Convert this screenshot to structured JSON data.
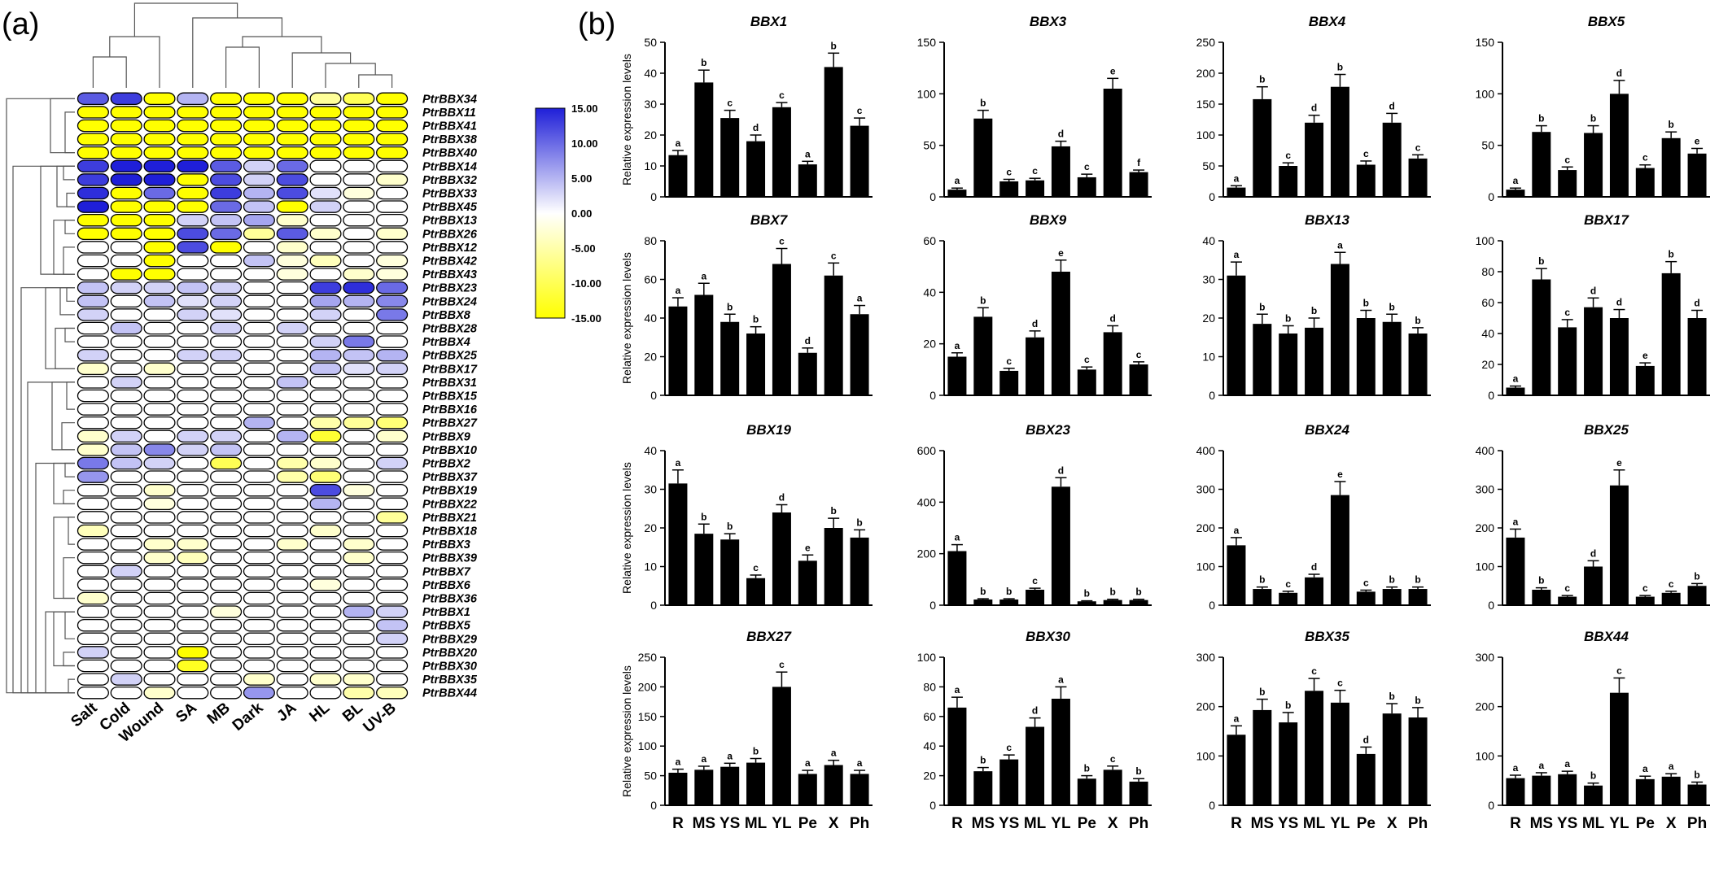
{
  "figure": {
    "panel_a_label": "(a)",
    "panel_b_label": "(b)"
  },
  "heatmap": {
    "treatments": [
      "Salt",
      "Cold",
      "Wound",
      "SA",
      "MB",
      "Dark",
      "JA",
      "HL",
      "BL",
      "UV-B"
    ],
    "genes": [
      "PtrBBX34",
      "PtrBBX11",
      "PtrBBX41",
      "PtrBBX38",
      "PtrBBX40",
      "PtrBBX14",
      "PtrBBX32",
      "PtrBBX33",
      "PtrBBX45",
      "PtrBBX13",
      "PtrBBX26",
      "PtrBBX12",
      "PtrBBX42",
      "PtrBBX43",
      "PtrBBX23",
      "PtrBBX24",
      "PtrBBX8",
      "PtrBBX28",
      "PtrBBX4",
      "PtrBBX25",
      "PtrBBX17",
      "PtrBBX31",
      "PtrBBX15",
      "PtrBBX16",
      "PtrBBX27",
      "PtrBBX9",
      "PtrBBX10",
      "PtrBBX2",
      "PtrBBX37",
      "PtrBBX19",
      "PtrBBX22",
      "PtrBBX21",
      "PtrBBX18",
      "PtrBBX3",
      "PtrBBX39",
      "PtrBBX7",
      "PtrBBX6",
      "PtrBBX36",
      "PtrBBX1",
      "PtrBBX5",
      "PtrBBX29",
      "PtrBBX20",
      "PtrBBX30",
      "PtrBBX35",
      "PtrBBX44"
    ],
    "values": [
      [
        11,
        13,
        -15,
        5,
        -15,
        -15,
        -15,
        -6,
        -10,
        -15
      ],
      [
        -15,
        -15,
        -15,
        -15,
        -15,
        -15,
        -15,
        -15,
        -15,
        -15
      ],
      [
        -15,
        -15,
        -15,
        -15,
        -15,
        -15,
        -15,
        -15,
        -15,
        -15
      ],
      [
        -15,
        -15,
        -15,
        -15,
        -15,
        -15,
        -15,
        -15,
        -15,
        -15
      ],
      [
        -15,
        -15,
        -15,
        -15,
        -15,
        -15,
        -15,
        -15,
        -15,
        -15
      ],
      [
        13,
        15,
        15,
        15,
        11,
        3,
        10,
        0,
        0,
        0
      ],
      [
        13,
        15,
        15,
        -15,
        12,
        3,
        12,
        0,
        0,
        -3
      ],
      [
        14,
        -15,
        10,
        -15,
        13,
        5,
        12,
        2,
        -2,
        0
      ],
      [
        15,
        -15,
        -15,
        -15,
        10,
        4,
        -15,
        3,
        0,
        0
      ],
      [
        -15,
        -15,
        -15,
        3,
        4,
        6,
        -3,
        0,
        0,
        0
      ],
      [
        -15,
        -15,
        -15,
        12,
        10,
        -6,
        11,
        -3,
        0,
        -3
      ],
      [
        0,
        0,
        -15,
        12,
        -15,
        0,
        -3,
        0,
        0,
        0
      ],
      [
        0,
        0,
        -15,
        0,
        0,
        4,
        -2,
        -4,
        0,
        -2
      ],
      [
        0,
        -15,
        -15,
        0,
        0,
        0,
        -2,
        0,
        -3,
        -2
      ],
      [
        4,
        3,
        3,
        4,
        3,
        0,
        0,
        13,
        14,
        10
      ],
      [
        4,
        0,
        4,
        2,
        3,
        0,
        0,
        6,
        5,
        8
      ],
      [
        3,
        0,
        0,
        3,
        2,
        0,
        0,
        3,
        0,
        9
      ],
      [
        0,
        4,
        0,
        0,
        3,
        0,
        3,
        0,
        0,
        0
      ],
      [
        0,
        0,
        0,
        0,
        0,
        0,
        0,
        3,
        9,
        0
      ],
      [
        3,
        0,
        0,
        3,
        3,
        0,
        0,
        5,
        4,
        5
      ],
      [
        -3,
        0,
        -3,
        0,
        0,
        0,
        0,
        4,
        2,
        3
      ],
      [
        0,
        3,
        0,
        0,
        0,
        0,
        4,
        0,
        0,
        0
      ],
      [
        0,
        0,
        0,
        0,
        0,
        0,
        0,
        0,
        0,
        0
      ],
      [
        0,
        0,
        0,
        0,
        0,
        0,
        0,
        0,
        0,
        0
      ],
      [
        0,
        0,
        0,
        0,
        0,
        5,
        0,
        -5,
        -6,
        -8
      ],
      [
        -3,
        3,
        0,
        3,
        3,
        0,
        5,
        -12,
        0,
        -3
      ],
      [
        -3,
        4,
        8,
        3,
        4,
        0,
        0,
        0,
        0,
        0
      ],
      [
        9,
        4,
        3,
        0,
        -10,
        0,
        -5,
        -3,
        0,
        3
      ],
      [
        7,
        0,
        0,
        0,
        0,
        0,
        -5,
        -8,
        0,
        0
      ],
      [
        0,
        0,
        -3,
        0,
        0,
        0,
        0,
        12,
        -2,
        0
      ],
      [
        0,
        0,
        -2,
        0,
        0,
        0,
        0,
        5,
        0,
        0
      ],
      [
        0,
        0,
        0,
        0,
        0,
        0,
        0,
        0,
        0,
        -6
      ],
      [
        -4,
        0,
        0,
        0,
        0,
        0,
        0,
        -3,
        0,
        0
      ],
      [
        0,
        0,
        -3,
        -3,
        0,
        0,
        -3,
        0,
        -3,
        0
      ],
      [
        0,
        0,
        -3,
        -4,
        0,
        0,
        0,
        0,
        -3,
        0
      ],
      [
        0,
        3,
        0,
        0,
        0,
        0,
        0,
        0,
        0,
        0
      ],
      [
        0,
        0,
        0,
        0,
        0,
        0,
        0,
        -2,
        0,
        0
      ],
      [
        -3,
        0,
        0,
        0,
        0,
        0,
        0,
        0,
        0,
        0
      ],
      [
        0,
        0,
        0,
        0,
        -2,
        0,
        0,
        0,
        5,
        3
      ],
      [
        0,
        0,
        0,
        0,
        0,
        0,
        0,
        0,
        0,
        4
      ],
      [
        0,
        0,
        0,
        0,
        0,
        0,
        0,
        0,
        0,
        3
      ],
      [
        3,
        0,
        0,
        -15,
        0,
        0,
        0,
        0,
        0,
        0
      ],
      [
        0,
        0,
        0,
        -13,
        0,
        0,
        0,
        0,
        0,
        0
      ],
      [
        0,
        3,
        0,
        0,
        0,
        -3,
        0,
        -3,
        -3,
        0
      ],
      [
        0,
        0,
        -3,
        0,
        0,
        7,
        0,
        0,
        -5,
        -4
      ]
    ],
    "colorbar": {
      "ticks": [
        "15.00",
        "10.00",
        "5.00",
        "0.00",
        "-5.00",
        "-10.00",
        "-15.00"
      ],
      "max_color": "#1f1fd8",
      "mid_color": "#ffffff",
      "min_color": "#ffff00"
    },
    "highlight_fill": "#ffff00"
  },
  "chart_data": {
    "type": "bar",
    "categories": [
      "R",
      "MS",
      "YS",
      "ML",
      "YL",
      "Pe",
      "X",
      "Ph"
    ],
    "ylabel": "Relative expression levels",
    "panels": [
      {
        "title": "BBX1",
        "ylim": [
          0,
          50
        ],
        "ticks": [
          0,
          10,
          20,
          30,
          40,
          50
        ],
        "values": [
          13.5,
          37,
          25.5,
          18,
          29,
          10.5,
          42,
          23
        ],
        "errors": [
          1.5,
          4,
          2.5,
          2,
          1.5,
          1,
          4.5,
          2.5
        ],
        "letters": [
          "a",
          "b",
          "c",
          "d",
          "c",
          "a",
          "b",
          "c"
        ]
      },
      {
        "title": "BBX3",
        "ylim": [
          0,
          150
        ],
        "ticks": [
          0,
          50,
          100,
          150
        ],
        "values": [
          7,
          76,
          15,
          16,
          49,
          19,
          105,
          24
        ],
        "errors": [
          1.5,
          8,
          2,
          2,
          5,
          3,
          10,
          2
        ],
        "letters": [
          "a",
          "b",
          "c",
          "c",
          "d",
          "c",
          "e",
          "f"
        ]
      },
      {
        "title": "BBX4",
        "ylim": [
          0,
          250
        ],
        "ticks": [
          0,
          50,
          100,
          150,
          200,
          250
        ],
        "values": [
          15,
          158,
          50,
          120,
          178,
          52,
          120,
          62
        ],
        "errors": [
          3,
          20,
          5,
          12,
          20,
          6,
          15,
          6
        ],
        "letters": [
          "a",
          "b",
          "c",
          "d",
          "b",
          "c",
          "d",
          "c"
        ]
      },
      {
        "title": "BBX5",
        "ylim": [
          0,
          150
        ],
        "ticks": [
          0,
          50,
          100,
          150
        ],
        "values": [
          7,
          63,
          26,
          62,
          100,
          28,
          57,
          42
        ],
        "errors": [
          1.5,
          6,
          3,
          7,
          13,
          3,
          6,
          5
        ],
        "letters": [
          "a",
          "b",
          "c",
          "b",
          "d",
          "c",
          "b",
          "e"
        ]
      },
      {
        "title": "BBX7",
        "ylim": [
          0,
          80
        ],
        "ticks": [
          0,
          20,
          40,
          60,
          80
        ],
        "values": [
          46,
          52,
          38,
          32,
          68,
          22,
          62,
          42
        ],
        "errors": [
          4.5,
          6,
          4,
          3.5,
          8,
          2.5,
          6.5,
          4.5
        ],
        "letters": [
          "a",
          "a",
          "b",
          "b",
          "c",
          "d",
          "c",
          "a"
        ]
      },
      {
        "title": "BBX9",
        "ylim": [
          0,
          60
        ],
        "ticks": [
          0,
          20,
          40,
          60
        ],
        "values": [
          15,
          30.5,
          9.5,
          22.5,
          48,
          10,
          24.5,
          12
        ],
        "errors": [
          1.5,
          3.5,
          1,
          2.5,
          4.5,
          1,
          2.5,
          1
        ],
        "letters": [
          "a",
          "b",
          "c",
          "d",
          "e",
          "c",
          "d",
          "c"
        ]
      },
      {
        "title": "BBX13",
        "ylim": [
          0,
          40
        ],
        "ticks": [
          0,
          10,
          20,
          30,
          40
        ],
        "values": [
          31,
          18.5,
          16,
          17.5,
          34,
          20,
          19,
          16
        ],
        "errors": [
          3.5,
          2.5,
          2,
          2.5,
          3,
          2,
          2,
          1.5
        ],
        "letters": [
          "a",
          "b",
          "b",
          "b",
          "a",
          "b",
          "b",
          "b"
        ]
      },
      {
        "title": "BBX17",
        "ylim": [
          0,
          100
        ],
        "ticks": [
          0,
          20,
          40,
          60,
          80,
          100
        ],
        "values": [
          5,
          75,
          44,
          57,
          50,
          19,
          79,
          50
        ],
        "errors": [
          1,
          7,
          5,
          6,
          5.5,
          2,
          7.5,
          5
        ],
        "letters": [
          "a",
          "b",
          "c",
          "d",
          "d",
          "e",
          "b",
          "d"
        ]
      },
      {
        "title": "BBX19",
        "ylim": [
          0,
          40
        ],
        "ticks": [
          0,
          10,
          20,
          30,
          40
        ],
        "values": [
          31.5,
          18.5,
          17,
          7,
          24,
          11.5,
          20,
          17.5
        ],
        "errors": [
          3.5,
          2.5,
          1.5,
          0.8,
          2,
          1.5,
          2.5,
          2
        ],
        "letters": [
          "a",
          "b",
          "b",
          "c",
          "d",
          "e",
          "b",
          "b"
        ]
      },
      {
        "title": "BBX23",
        "ylim": [
          0,
          600
        ],
        "ticks": [
          0,
          200,
          400,
          600
        ],
        "values": [
          210,
          22,
          22,
          60,
          460,
          15,
          20,
          20
        ],
        "errors": [
          25,
          3,
          3,
          6,
          35,
          2,
          3,
          3
        ],
        "letters": [
          "a",
          "b",
          "b",
          "c",
          "d",
          "b",
          "b",
          "b"
        ]
      },
      {
        "title": "BBX24",
        "ylim": [
          0,
          400
        ],
        "ticks": [
          0,
          100,
          200,
          300,
          400
        ],
        "values": [
          155,
          42,
          32,
          72,
          285,
          35,
          42,
          42
        ],
        "errors": [
          20,
          5,
          4,
          8,
          35,
          4,
          5,
          5
        ],
        "letters": [
          "a",
          "b",
          "c",
          "d",
          "e",
          "c",
          "b",
          "b"
        ]
      },
      {
        "title": "BBX25",
        "ylim": [
          0,
          400
        ],
        "ticks": [
          0,
          100,
          200,
          300,
          400
        ],
        "values": [
          175,
          40,
          22,
          100,
          310,
          22,
          32,
          50
        ],
        "errors": [
          22,
          5,
          3,
          15,
          40,
          3,
          4,
          6
        ],
        "letters": [
          "a",
          "b",
          "c",
          "d",
          "e",
          "c",
          "c",
          "b"
        ]
      },
      {
        "title": "BBX27",
        "ylim": [
          0,
          250
        ],
        "ticks": [
          0,
          50,
          100,
          150,
          200,
          250
        ],
        "values": [
          55,
          60,
          65,
          72,
          200,
          53,
          68,
          53
        ],
        "errors": [
          6,
          6,
          6,
          7,
          25,
          6,
          8,
          6
        ],
        "letters": [
          "a",
          "a",
          "a",
          "b",
          "c",
          "a",
          "a",
          "a"
        ]
      },
      {
        "title": "BBX30",
        "ylim": [
          0,
          100
        ],
        "ticks": [
          0,
          20,
          40,
          60,
          80,
          100
        ],
        "values": [
          66,
          23,
          31,
          53,
          72,
          18,
          24,
          16
        ],
        "errors": [
          7,
          2.5,
          3,
          6,
          8,
          2,
          2.5,
          2
        ],
        "letters": [
          "a",
          "b",
          "c",
          "d",
          "a",
          "b",
          "c",
          "b"
        ]
      },
      {
        "title": "BBX35",
        "ylim": [
          0,
          300
        ],
        "ticks": [
          0,
          100,
          200,
          300
        ],
        "values": [
          143,
          193,
          168,
          232,
          208,
          104,
          186,
          178
        ],
        "errors": [
          18,
          22,
          20,
          25,
          25,
          14,
          20,
          20
        ],
        "letters": [
          "a",
          "b",
          "b",
          "c",
          "c",
          "d",
          "b",
          "b"
        ]
      },
      {
        "title": "BBX44",
        "ylim": [
          0,
          300
        ],
        "ticks": [
          0,
          100,
          200,
          300
        ],
        "values": [
          55,
          60,
          63,
          40,
          228,
          53,
          58,
          42
        ],
        "errors": [
          6,
          6,
          6,
          5,
          30,
          6,
          6,
          5
        ],
        "letters": [
          "a",
          "a",
          "a",
          "b",
          "c",
          "a",
          "a",
          "b"
        ]
      }
    ]
  }
}
